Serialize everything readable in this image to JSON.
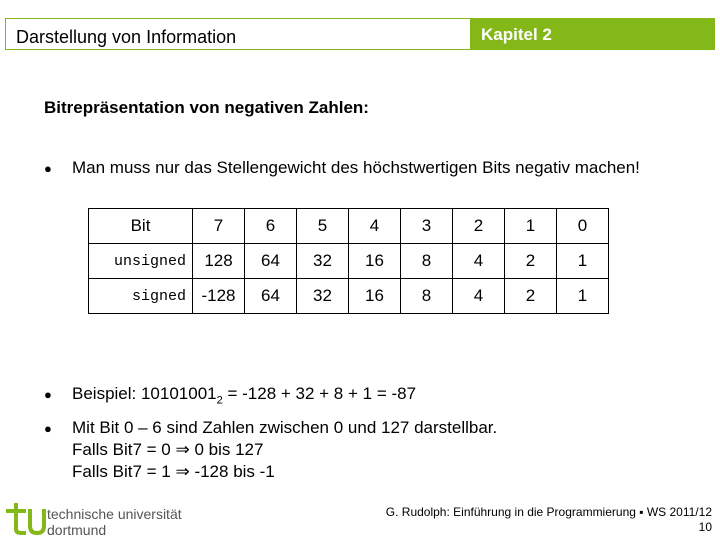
{
  "header": {
    "title": "Darstellung von Information",
    "chapter": "Kapitel 2"
  },
  "heading": "Bitrepräsentation von negativen Zahlen:",
  "bullet1": "Man muss nur das Stellengewicht des höchstwertigen Bits negativ machen!",
  "table": {
    "header_label": "Bit",
    "bits": [
      "7",
      "6",
      "5",
      "4",
      "3",
      "2",
      "1",
      "0"
    ],
    "rows": [
      {
        "label": "unsigned",
        "values": [
          "128",
          "64",
          "32",
          "16",
          "8",
          "4",
          "2",
          "1"
        ]
      },
      {
        "label": "signed",
        "values": [
          "-128",
          "64",
          "32",
          "16",
          "8",
          "4",
          "2",
          "1"
        ]
      }
    ]
  },
  "example": {
    "prefix": "Beispiel:  10101001",
    "subscript": "2",
    "suffix": "  =  -128 + 32 + 8 + 1  = -87"
  },
  "bullet3": {
    "line1": "Mit Bit 0 – 6 sind Zahlen zwischen 0 und 127 darstellbar.",
    "line2_a": "Falls Bit7 = 0 ",
    "line2_b": "    0 bis  127",
    "line3_a": "Falls Bit7 = 1 ",
    "line3_b": " -128 bis -1",
    "arrow": "⇒"
  },
  "footer": {
    "university_line1": "technische universität",
    "university_line2": "dortmund",
    "citation": "G. Rudolph: Einführung in die Programmierung ▪ WS 2011/12",
    "page": "10"
  },
  "colors": {
    "accent": "#84b819"
  }
}
